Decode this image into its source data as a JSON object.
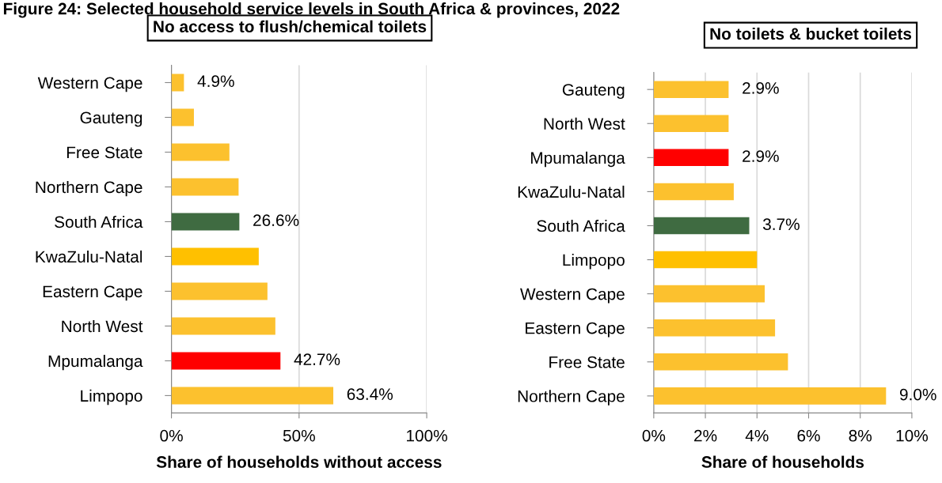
{
  "chart_data": [
    {
      "type": "bar",
      "orientation": "horizontal",
      "title": "No access to flush/chemical toilets",
      "xlabel": "Share of households without access",
      "annotations": [
        "Figure 24: Selected household service levels in South Africa & provinces, 2022"
      ],
      "categories": [
        "Western Cape",
        "Gauteng",
        "Free State",
        "Northern Cape",
        "South Africa",
        "KwaZulu-Natal",
        "Eastern Cape",
        "North West",
        "Mpumalanga",
        "Limpopo"
      ],
      "values": [
        4.9,
        8.8,
        22.7,
        26.3,
        26.6,
        34.2,
        37.6,
        40.7,
        42.7,
        63.4
      ],
      "colors": [
        "#fcc12e",
        "#fcc12e",
        "#fcc12e",
        "#fcc12e",
        "#3f6b41",
        "#ffc000",
        "#fcc12e",
        "#fcc12e",
        "#ff0000",
        "#fcc12e"
      ],
      "value_labels": [
        "4.9%",
        null,
        null,
        null,
        "26.6%",
        null,
        null,
        null,
        "42.7%",
        "63.4%"
      ],
      "xlim": [
        0,
        100
      ],
      "xticks": [
        {
          "value": 0,
          "label": "0%"
        },
        {
          "value": 50,
          "label": "50%"
        },
        {
          "value": 100,
          "label": "100%"
        }
      ],
      "grid": "x"
    },
    {
      "type": "bar",
      "orientation": "horizontal",
      "title": "No toilets & bucket toilets",
      "xlabel": "Share of households",
      "categories": [
        "Gauteng",
        "North West",
        "Mpumalanga",
        "KwaZulu-Natal",
        "South Africa",
        "Limpopo",
        "Western Cape",
        "Eastern Cape",
        "Free State",
        "Northern Cape"
      ],
      "values": [
        2.9,
        2.9,
        2.9,
        3.1,
        3.7,
        4.0,
        4.3,
        4.7,
        5.2,
        9.0
      ],
      "colors": [
        "#fcc12e",
        "#fcc12e",
        "#ff0000",
        "#fcc12e",
        "#3f6b41",
        "#ffc000",
        "#fcc12e",
        "#fcc12e",
        "#fcc12e",
        "#fcc12e"
      ],
      "value_labels": [
        "2.9%",
        null,
        "2.9%",
        null,
        "3.7%",
        null,
        null,
        null,
        null,
        "9.0%"
      ],
      "xlim": [
        0,
        10
      ],
      "xticks": [
        {
          "value": 0,
          "label": "0%"
        },
        {
          "value": 2,
          "label": "2%"
        },
        {
          "value": 4,
          "label": "4%"
        },
        {
          "value": 6,
          "label": "6%"
        },
        {
          "value": 8,
          "label": "8%"
        },
        {
          "value": 10,
          "label": "10%"
        }
      ],
      "grid": "x"
    }
  ]
}
